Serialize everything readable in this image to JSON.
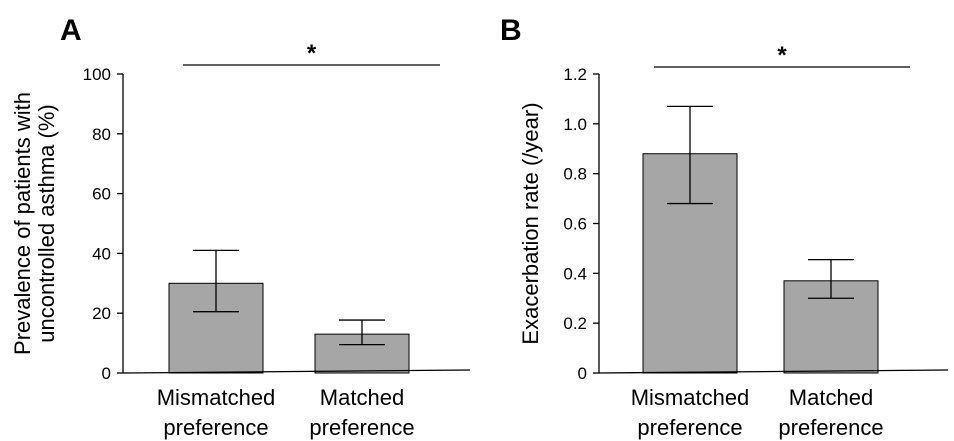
{
  "chart_data": [
    {
      "panel": "A",
      "type": "bar",
      "categories": [
        [
          "Mismatched",
          "preference"
        ],
        [
          "Matched",
          "preference"
        ]
      ],
      "values": [
        30,
        13
      ],
      "error_low": [
        20.5,
        9.5
      ],
      "error_high": [
        41,
        17.7
      ],
      "ylabel": [
        "Prevalence of patients with",
        "uncontrolled asthma (%)"
      ],
      "ylim": [
        0,
        100
      ],
      "yticks": [
        0,
        20,
        40,
        60,
        80,
        100
      ],
      "ytick_labels": [
        "0",
        "20",
        "40",
        "60",
        "80",
        "100"
      ],
      "significance": "*",
      "bar_color": "#a6a6a6",
      "grid": false
    },
    {
      "panel": "B",
      "type": "bar",
      "categories": [
        [
          "Mismatched",
          "preference"
        ],
        [
          "Matched",
          "preference"
        ]
      ],
      "values": [
        0.88,
        0.37
      ],
      "error_low": [
        0.68,
        0.3
      ],
      "error_high": [
        1.07,
        0.455
      ],
      "ylabel": [
        "Exacerbation rate (/year)"
      ],
      "ylim": [
        0,
        1.2
      ],
      "yticks": [
        0,
        0.2,
        0.4,
        0.6,
        0.8,
        1.0,
        1.2
      ],
      "ytick_labels": [
        "0",
        "0.2",
        "0.4",
        "0.6",
        "0.8",
        "1.0",
        "1.2"
      ],
      "significance": "*",
      "bar_color": "#a6a6a6",
      "grid": false
    }
  ]
}
